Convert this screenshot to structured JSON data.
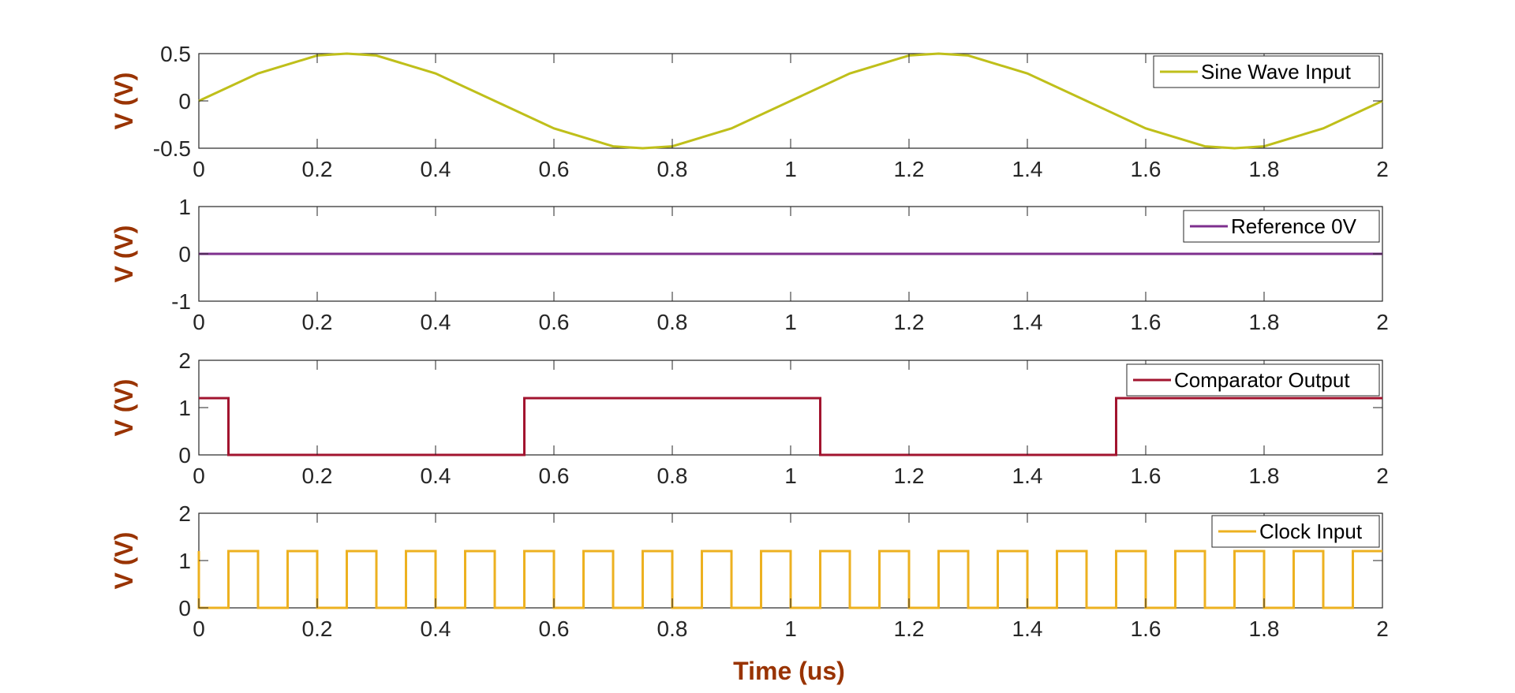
{
  "figure": {
    "xlabel": "Time (us)",
    "colors": {
      "label": "#993300",
      "axis": "#262626",
      "tick": "#262626",
      "background": "#ffffff"
    }
  },
  "chart_data": [
    {
      "type": "line",
      "title": "",
      "xlabel": "",
      "ylabel": "V (V)",
      "xlim": [
        0,
        2
      ],
      "ylim": [
        -0.5,
        0.5
      ],
      "x_ticks": [
        0,
        0.2,
        0.4,
        0.6,
        0.8,
        1,
        1.2,
        1.4,
        1.6,
        1.8,
        2
      ],
      "x_tick_labels": [
        "0",
        "0.2",
        "0.4",
        "0.6",
        "0.8",
        "1",
        "1.2",
        "1.4",
        "1.6",
        "1.8",
        "2"
      ],
      "y_ticks": [
        -0.5,
        0,
        0.5
      ],
      "y_tick_labels": [
        "-0.5",
        "0",
        "0.5"
      ],
      "grid": false,
      "legend_position": "top-right",
      "series": [
        {
          "name": "Sine Wave Input",
          "color": "#bfbf1a",
          "x": [
            0,
            0.1,
            0.2,
            0.25,
            0.3,
            0.4,
            0.5,
            0.6,
            0.7,
            0.75,
            0.8,
            0.9,
            1.0,
            1.1,
            1.2,
            1.25,
            1.3,
            1.4,
            1.5,
            1.6,
            1.7,
            1.75,
            1.8,
            1.9,
            2.0
          ],
          "values": [
            0,
            0.29,
            0.48,
            0.5,
            0.48,
            0.29,
            0,
            -0.29,
            -0.48,
            -0.5,
            -0.48,
            -0.29,
            0,
            0.29,
            0.48,
            0.5,
            0.48,
            0.29,
            0,
            -0.29,
            -0.48,
            -0.5,
            -0.48,
            -0.29,
            0
          ]
        }
      ]
    },
    {
      "type": "line",
      "title": "",
      "xlabel": "",
      "ylabel": "V (V)",
      "xlim": [
        0,
        2
      ],
      "ylim": [
        -1,
        1
      ],
      "x_ticks": [
        0,
        0.2,
        0.4,
        0.6,
        0.8,
        1,
        1.2,
        1.4,
        1.6,
        1.8,
        2
      ],
      "x_tick_labels": [
        "0",
        "0.2",
        "0.4",
        "0.6",
        "0.8",
        "1",
        "1.2",
        "1.4",
        "1.6",
        "1.8",
        "2"
      ],
      "y_ticks": [
        -1,
        0,
        1
      ],
      "y_tick_labels": [
        "-1",
        "0",
        "1"
      ],
      "grid": false,
      "legend_position": "top-right",
      "series": [
        {
          "name": "Reference 0V",
          "color": "#7e2f8e",
          "x": [
            0,
            2
          ],
          "values": [
            0,
            0
          ]
        }
      ]
    },
    {
      "type": "line",
      "title": "",
      "xlabel": "",
      "ylabel": "V (V)",
      "xlim": [
        0,
        2
      ],
      "ylim": [
        0,
        2
      ],
      "x_ticks": [
        0,
        0.2,
        0.4,
        0.6,
        0.8,
        1,
        1.2,
        1.4,
        1.6,
        1.8,
        2
      ],
      "x_tick_labels": [
        "0",
        "0.2",
        "0.4",
        "0.6",
        "0.8",
        "1",
        "1.2",
        "1.4",
        "1.6",
        "1.8",
        "2"
      ],
      "y_ticks": [
        0,
        1,
        2
      ],
      "y_tick_labels": [
        "0",
        "1",
        "2"
      ],
      "grid": false,
      "legend_position": "top-right",
      "series": [
        {
          "name": "Comparator Output",
          "color": "#a2142f",
          "x": [
            0,
            0.05,
            0.05,
            0.55,
            0.55,
            1.05,
            1.05,
            1.55,
            1.55,
            2.0
          ],
          "values": [
            1.2,
            1.2,
            0,
            0,
            1.2,
            1.2,
            0,
            0,
            1.2,
            1.2
          ]
        }
      ]
    },
    {
      "type": "line",
      "title": "",
      "xlabel": "Time (us)",
      "ylabel": "V (V)",
      "xlim": [
        0,
        2
      ],
      "ylim": [
        0,
        2
      ],
      "x_ticks": [
        0,
        0.2,
        0.4,
        0.6,
        0.8,
        1,
        1.2,
        1.4,
        1.6,
        1.8,
        2
      ],
      "x_tick_labels": [
        "0",
        "0.2",
        "0.4",
        "0.6",
        "0.8",
        "1",
        "1.2",
        "1.4",
        "1.6",
        "1.8",
        "2"
      ],
      "y_ticks": [
        0,
        1,
        2
      ],
      "y_tick_labels": [
        "0",
        "1",
        "2"
      ],
      "grid": false,
      "legend_position": "top-right",
      "series": [
        {
          "name": "Clock Input",
          "color": "#edb120",
          "x": [
            0,
            0,
            0.05,
            0.05,
            0.1,
            0.1,
            0.15,
            0.15,
            0.2,
            0.2,
            0.25,
            0.25,
            0.3,
            0.3,
            0.35,
            0.35,
            0.4,
            0.4,
            0.45,
            0.45,
            0.5,
            0.5,
            0.55,
            0.55,
            0.6,
            0.6,
            0.65,
            0.65,
            0.7,
            0.7,
            0.75,
            0.75,
            0.8,
            0.8,
            0.85,
            0.85,
            0.9,
            0.9,
            0.95,
            0.95,
            1.0,
            1.0,
            1.05,
            1.05,
            1.1,
            1.1,
            1.15,
            1.15,
            1.2,
            1.2,
            1.25,
            1.25,
            1.3,
            1.3,
            1.35,
            1.35,
            1.4,
            1.4,
            1.45,
            1.45,
            1.5,
            1.5,
            1.55,
            1.55,
            1.6,
            1.6,
            1.65,
            1.65,
            1.7,
            1.7,
            1.75,
            1.75,
            1.8,
            1.8,
            1.85,
            1.85,
            1.9,
            1.9,
            1.95,
            1.95,
            2.0
          ],
          "values": [
            1.2,
            0,
            0,
            1.2,
            1.2,
            0,
            0,
            1.2,
            1.2,
            0,
            0,
            1.2,
            1.2,
            0,
            0,
            1.2,
            1.2,
            0,
            0,
            1.2,
            1.2,
            0,
            0,
            1.2,
            1.2,
            0,
            0,
            1.2,
            1.2,
            0,
            0,
            1.2,
            1.2,
            0,
            0,
            1.2,
            1.2,
            0,
            0,
            1.2,
            1.2,
            0,
            0,
            1.2,
            1.2,
            0,
            0,
            1.2,
            1.2,
            0,
            0,
            1.2,
            1.2,
            0,
            0,
            1.2,
            1.2,
            0,
            0,
            1.2,
            1.2,
            0,
            0,
            1.2,
            1.2,
            0,
            0,
            1.2,
            1.2,
            0,
            0,
            1.2,
            1.2,
            0,
            0,
            1.2,
            1.2,
            0,
            0,
            1.2,
            1.2
          ]
        }
      ]
    }
  ]
}
